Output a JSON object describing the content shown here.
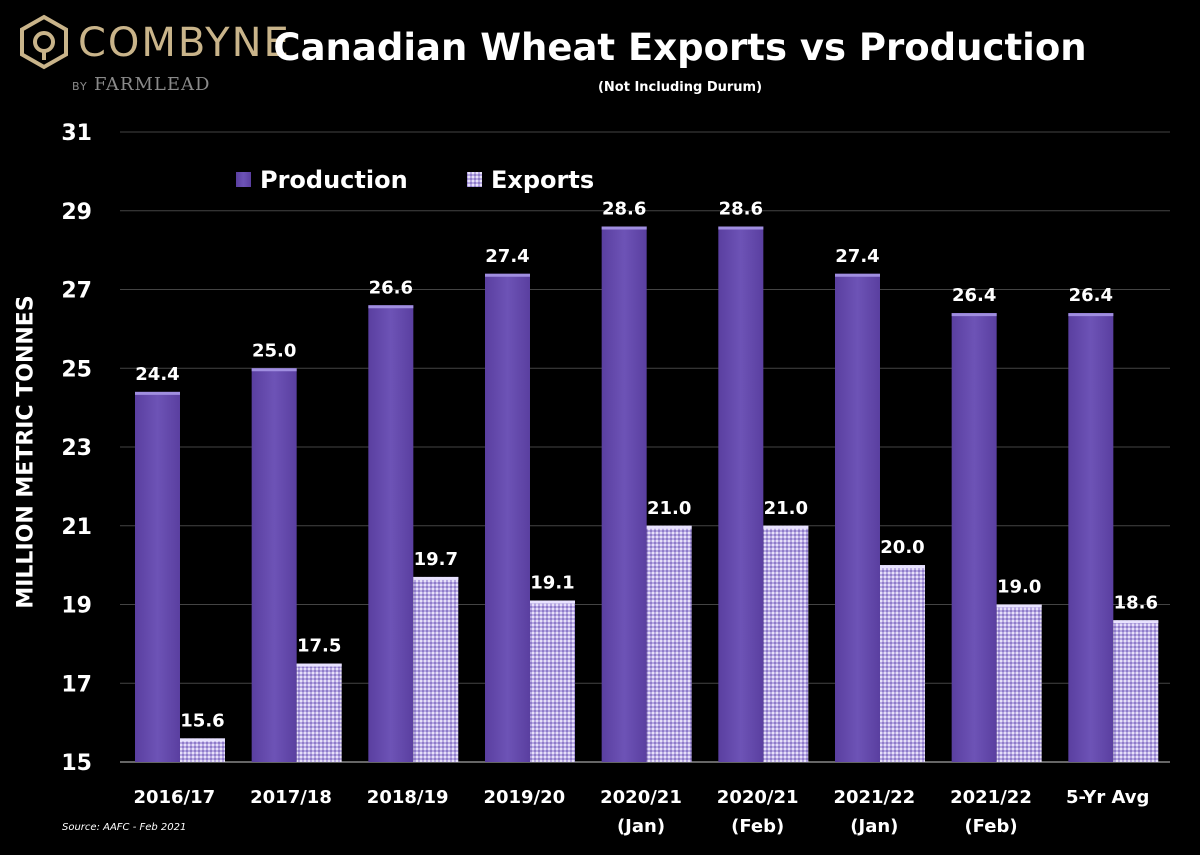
{
  "brand": {
    "logo_text": "COMBYNE",
    "by_text": "BY",
    "partner_text": "FARMLEAD"
  },
  "chart_data": {
    "type": "bar",
    "title": "Canadian Wheat Exports vs Production",
    "subtitle": "(Not Including Durum)",
    "ylabel": "MILLION METRIC TONNES",
    "xlabel": "",
    "ylim": [
      15,
      31
    ],
    "yticks": [
      15,
      17,
      19,
      21,
      23,
      25,
      27,
      29,
      31
    ],
    "grid": true,
    "legend_position": "top-left",
    "categories": [
      "2016/17",
      "2017/18",
      "2018/19",
      "2019/20",
      "2020/21\n(Jan)",
      "2020/21\n(Feb)",
      "2021/22\n(Jan)",
      "2021/22\n(Feb)",
      "5-Yr Avg"
    ],
    "series": [
      {
        "name": "Production",
        "color": "#6a4fb0",
        "values": [
          24.4,
          25.0,
          26.6,
          27.4,
          28.6,
          28.6,
          27.4,
          26.4,
          26.4
        ]
      },
      {
        "name": "Exports",
        "color": "#b7a8e3",
        "pattern": "dotted",
        "values": [
          15.6,
          17.5,
          19.7,
          19.1,
          21.0,
          21.0,
          20.0,
          19.0,
          18.6
        ]
      }
    ],
    "data_labels": [
      [
        "24.4",
        "25.0",
        "26.6",
        "27.4",
        "28.6",
        "28.6",
        "27.4",
        "26.4",
        "26.4"
      ],
      [
        "15.6",
        "17.5",
        "19.7",
        "19.1",
        "21.0",
        "21.0",
        "20.0",
        "19.0",
        "18.6"
      ]
    ],
    "source": "Source: AAFC - Feb 2021"
  }
}
